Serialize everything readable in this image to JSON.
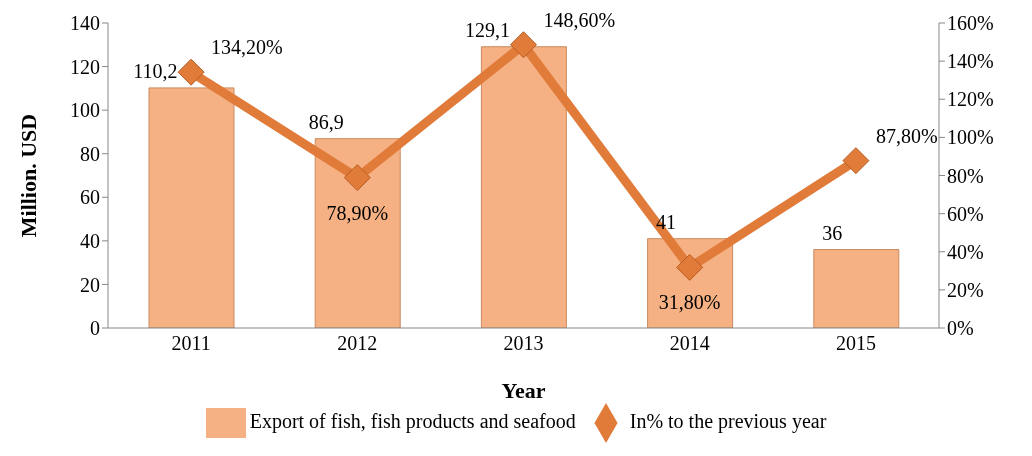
{
  "chart_data": {
    "type": "bar",
    "xlabel": "Year",
    "ylabel": "Million. USD",
    "categories": [
      "2011",
      "2012",
      "2013",
      "2014",
      "2015"
    ],
    "series": [
      {
        "name": "Export of fish, fish products and seafood",
        "color": "#f5b183",
        "values": [
          110.2,
          86.9,
          129.1,
          41,
          36
        ],
        "value_labels": [
          "110,2",
          "86,9",
          "129,1",
          "41",
          "36"
        ]
      },
      {
        "name": "In% to the previous year",
        "type": "line",
        "axis": "y2",
        "color": "#e07b39",
        "marker": "diamond",
        "values": [
          134.2,
          78.9,
          148.6,
          31.8,
          87.8
        ],
        "value_labels": [
          "134,20%",
          "78,90%",
          "148,60%",
          "31,80%",
          "87,80%"
        ]
      }
    ],
    "ylim": [
      0,
      140
    ],
    "yticks": [
      0,
      20,
      40,
      60,
      80,
      100,
      120,
      140
    ],
    "y2lim": [
      0,
      160
    ],
    "y2ticks": [
      {
        "value": 0,
        "label": "0%"
      },
      {
        "value": 20,
        "label": "20%"
      },
      {
        "value": 40,
        "label": "40%"
      },
      {
        "value": 60,
        "label": "60%"
      },
      {
        "value": 80,
        "label": "80%"
      },
      {
        "value": 100,
        "label": "100%"
      },
      {
        "value": 120,
        "label": "120%"
      },
      {
        "value": 140,
        "label": "140%"
      },
      {
        "value": 160,
        "label": "160%"
      }
    ],
    "grid": false,
    "legend": "bottom"
  }
}
